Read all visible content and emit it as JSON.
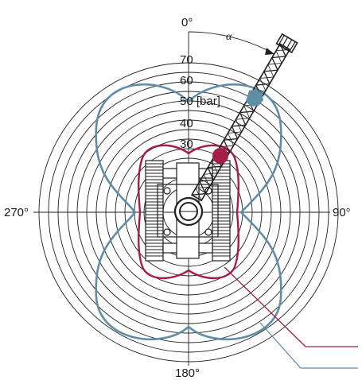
{
  "angles": {
    "top": "0°",
    "right": "90°",
    "bottom": "180°",
    "left": "270°"
  },
  "angle_symbol": "α",
  "pressure_scale": {
    "labels": [
      "30",
      "40",
      "50 [bar]",
      "60",
      "70"
    ]
  },
  "colors": {
    "rings": "#1f1f1f",
    "outer_curve": "#5e8ea5",
    "inner_curve": "#a51c45",
    "crane": "#1f1f1f",
    "outer_marker": "#5e8ea5",
    "inner_marker": "#a51c45"
  },
  "crane": {
    "icon": "crawler-crane-top-view-icon"
  }
}
